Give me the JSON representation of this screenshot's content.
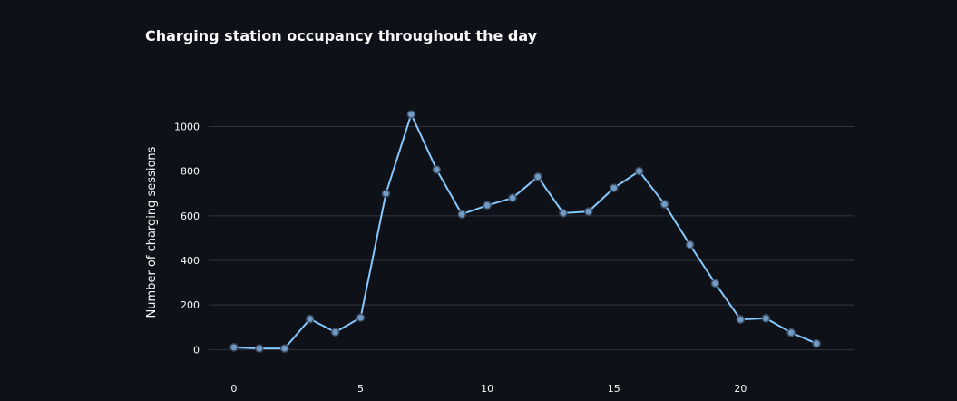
{
  "chart_data": {
    "type": "line",
    "title": "Charging station occupancy throughout the day",
    "xlabel": "",
    "ylabel": "Number of charging sessions",
    "x": [
      0,
      1,
      2,
      3,
      4,
      5,
      6,
      7,
      8,
      9,
      10,
      11,
      12,
      13,
      14,
      15,
      16,
      17,
      18,
      19,
      20,
      21,
      22,
      23
    ],
    "series": [
      {
        "values": [
          10,
          5,
          5,
          137,
          78,
          143,
          700,
          1055,
          807,
          607,
          647,
          680,
          775,
          612,
          619,
          725,
          800,
          652,
          470,
          297,
          135,
          140,
          76,
          27
        ]
      }
    ],
    "xticks": [
      0,
      5,
      10,
      15,
      20
    ],
    "yticks": [
      0,
      200,
      400,
      600,
      800,
      1000
    ],
    "xlim": [
      -1,
      24.5
    ],
    "ylim": [
      -80,
      1120
    ],
    "grid": "horizontal",
    "line_color": "#83c9ff",
    "marker_fill": "#6f9bc6",
    "marker_stroke": "#3e4e63"
  }
}
